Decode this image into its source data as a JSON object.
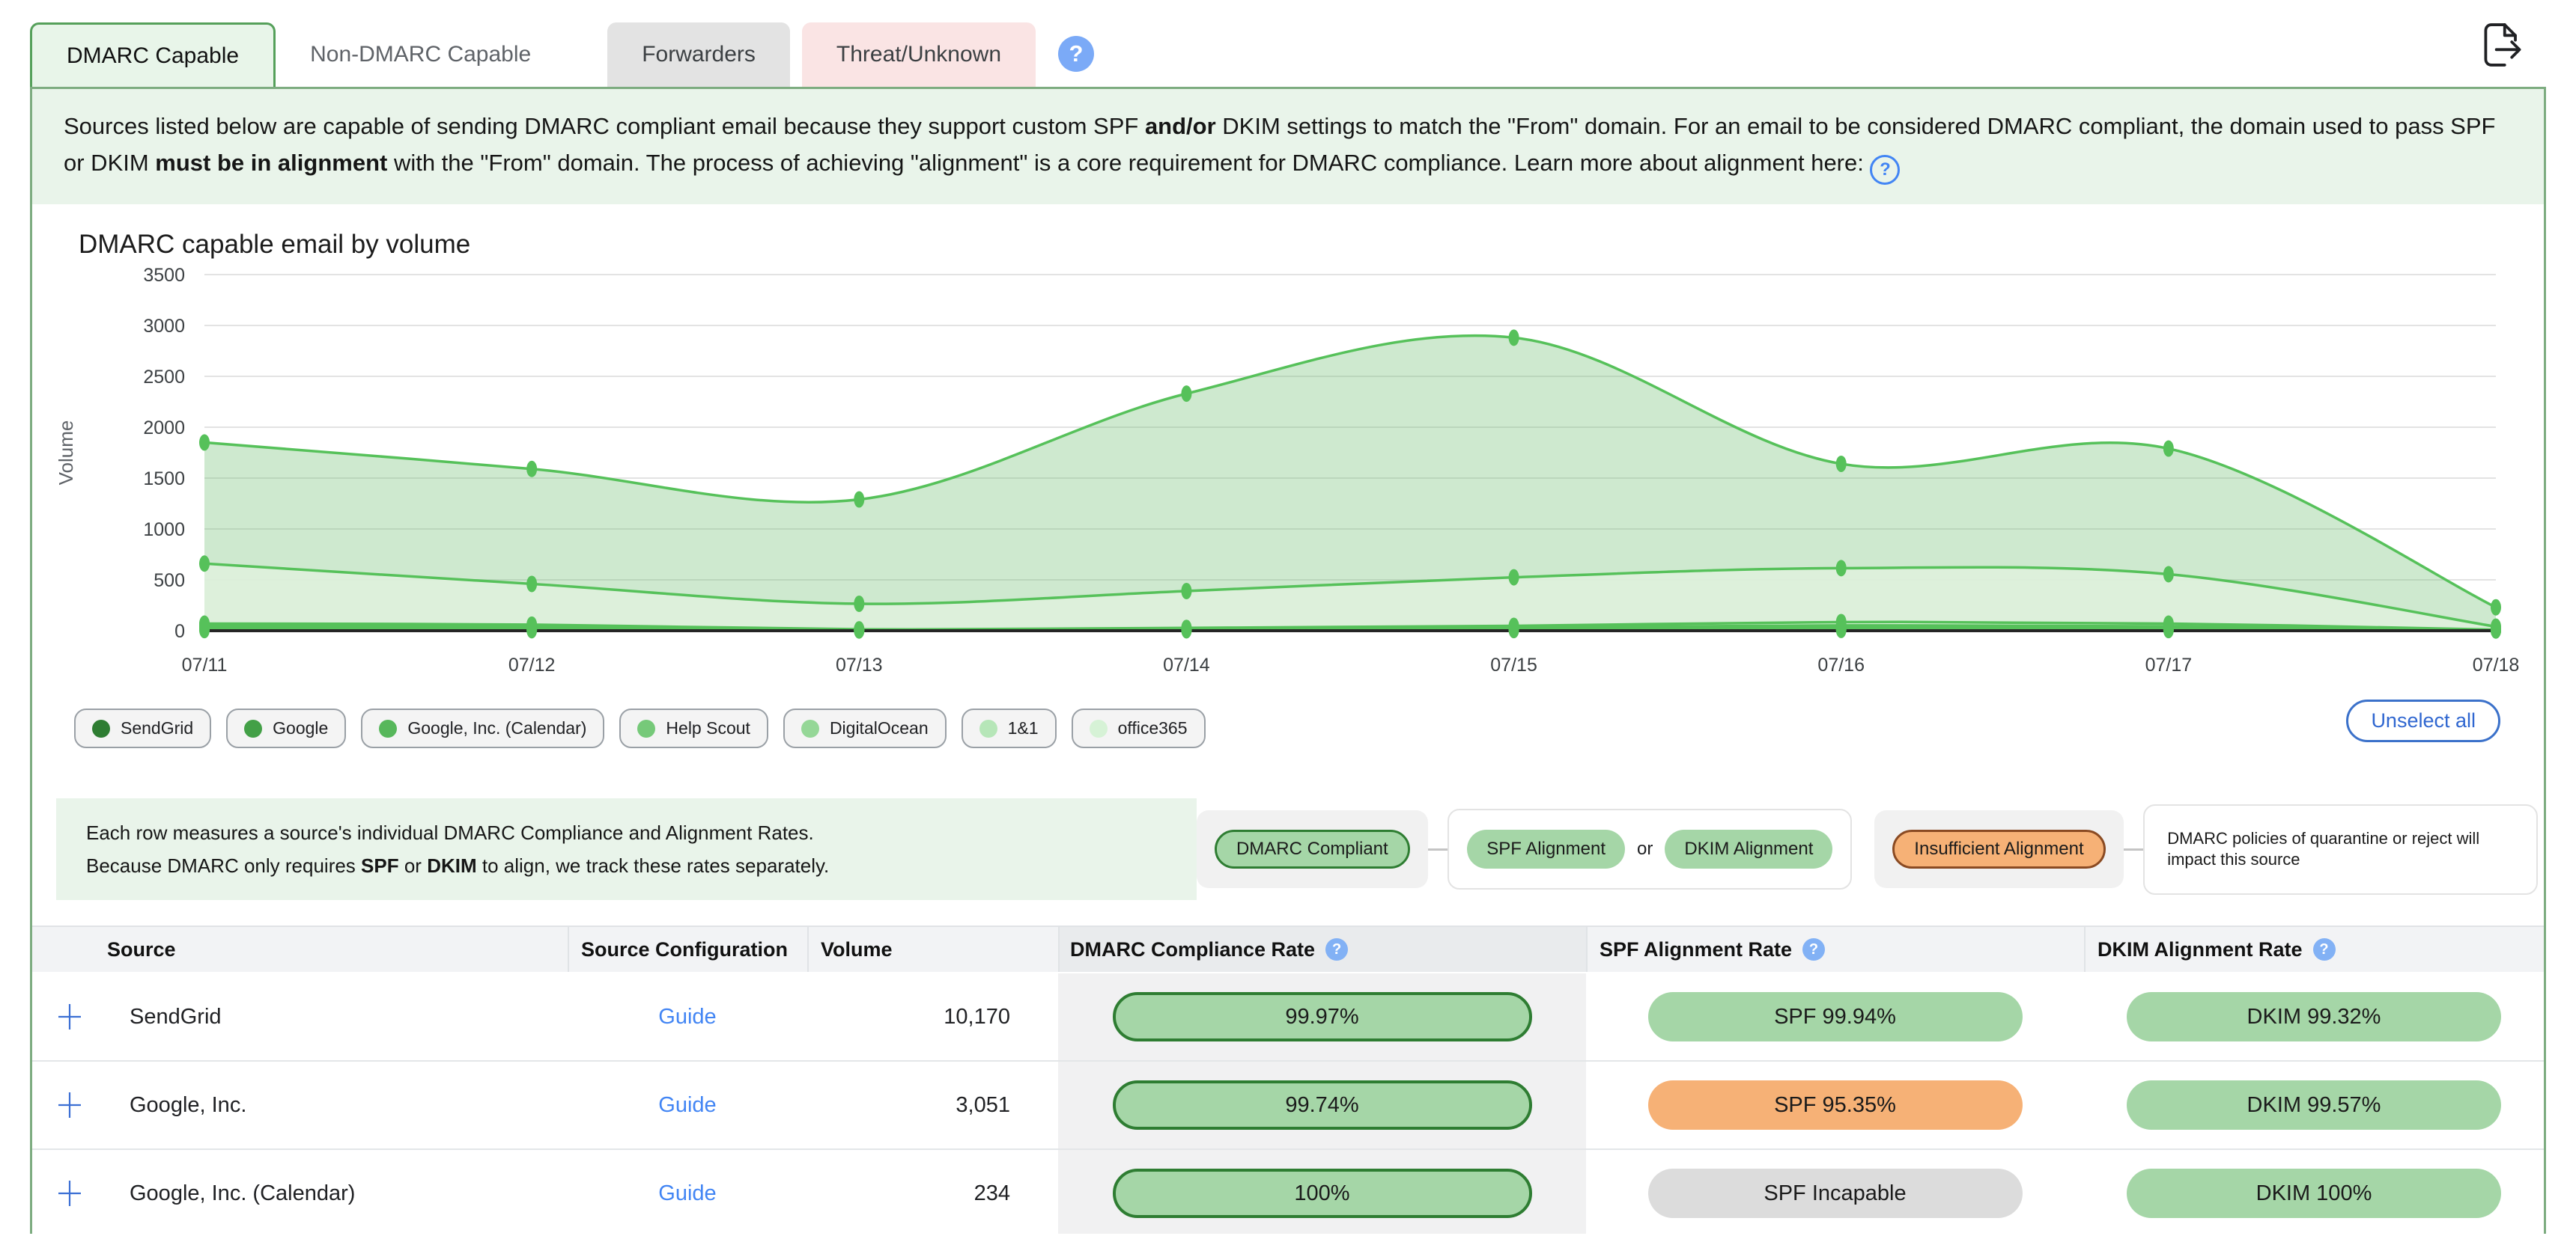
{
  "tabs": [
    {
      "label": "DMARC Capable",
      "state": "active"
    },
    {
      "label": "Non-DMARC Capable",
      "state": "plain"
    },
    {
      "label": "Forwarders",
      "state": "gray"
    },
    {
      "label": "Threat/Unknown",
      "state": "pink"
    }
  ],
  "icons": {
    "help_glyph": "?"
  },
  "banner": {
    "segments": [
      {
        "text": "Sources listed below are capable of sending DMARC compliant email because they support custom SPF ",
        "bold": false
      },
      {
        "text": "and/or",
        "bold": true
      },
      {
        "text": " DKIM settings to match the \"From\" domain. For an email to be considered DMARC compliant, the domain used to pass SPF or DKIM ",
        "bold": false
      },
      {
        "text": "must be in alignment",
        "bold": true
      },
      {
        "text": " with the \"From\" domain. The process of achieving \"alignment\" is a core requirement for DMARC compliance. Learn more about alignment here: ",
        "bold": false
      }
    ]
  },
  "chart": {
    "title": "DMARC capable email by volume",
    "unselect_label": "Unselect all"
  },
  "chart_data": {
    "type": "area",
    "x": [
      "07/11",
      "07/12",
      "07/13",
      "07/14",
      "07/15",
      "07/16",
      "07/17",
      "07/18"
    ],
    "series": [
      {
        "name": "SendGrid",
        "color": "#2e7d32",
        "values": [
          1850,
          1590,
          1290,
          2330,
          2880,
          1640,
          1790,
          230
        ]
      },
      {
        "name": "Google",
        "color": "#43a047",
        "values": [
          660,
          460,
          265,
          390,
          525,
          615,
          555,
          40
        ]
      },
      {
        "name": "Google, Inc. (Calendar)",
        "color": "#57b75b",
        "values": [
          70,
          60,
          14,
          28,
          48,
          85,
          70,
          10
        ]
      },
      {
        "name": "Help Scout",
        "color": "#76c979",
        "values": [
          48,
          40,
          10,
          20,
          34,
          52,
          44,
          8
        ]
      },
      {
        "name": "DigitalOcean",
        "color": "#95d797",
        "values": [
          30,
          25,
          6,
          13,
          21,
          31,
          27,
          5
        ]
      },
      {
        "name": "1&1",
        "color": "#b6e6b8",
        "values": [
          15,
          12,
          4,
          8,
          11,
          15,
          12,
          3
        ]
      },
      {
        "name": "office365",
        "color": "#d6f2d6",
        "values": [
          6,
          5,
          2,
          4,
          6,
          8,
          6,
          2
        ]
      }
    ],
    "title": "DMARC capable email by volume",
    "xlabel": "",
    "ylabel": "Volume",
    "ylim": [
      0,
      3500
    ],
    "ytick_step": 500,
    "grid": true,
    "legend_position": "bottom"
  },
  "note": {
    "line1": "Each row measures a source's individual DMARC Compliance and Alignment Rates.",
    "line2_segments": [
      {
        "text": "Because DMARC only requires ",
        "bold": false
      },
      {
        "text": "SPF",
        "bold": true
      },
      {
        "text": " or ",
        "bold": false
      },
      {
        "text": "DKIM",
        "bold": true
      },
      {
        "text": " to align, we track these rates separately.",
        "bold": false
      }
    ]
  },
  "legend": {
    "compliant": "DMARC Compliant",
    "spf": "SPF Alignment",
    "or": "or",
    "dkim": "DKIM Alignment",
    "insufficient": "Insufficient Alignment",
    "impact": "DMARC policies of quarantine or reject will impact this source"
  },
  "table": {
    "headers": {
      "source": "Source",
      "config": "Source Configuration",
      "volume": "Volume",
      "compliance": "DMARC Compliance Rate",
      "spf": "SPF Alignment Rate",
      "dkim": "DKIM Alignment Rate"
    },
    "rows": [
      {
        "source": "SendGrid",
        "config": "Guide",
        "volume": "10,170",
        "compliance": "99.97%",
        "spf_text": "SPF 99.94%",
        "spf_type": "green",
        "dkim_text": "DKIM 99.32%",
        "dkim_type": "green"
      },
      {
        "source": "Google, Inc.",
        "config": "Guide",
        "volume": "3,051",
        "compliance": "99.74%",
        "spf_text": "SPF 95.35%",
        "spf_type": "orange",
        "dkim_text": "DKIM 99.57%",
        "dkim_type": "green"
      },
      {
        "source": "Google, Inc. (Calendar)",
        "config": "Guide",
        "volume": "234",
        "compliance": "100%",
        "spf_text": "SPF Incapable",
        "spf_type": "gray",
        "dkim_text": "DKIM 100%",
        "dkim_type": "green"
      }
    ]
  },
  "colors": {
    "accent_green": "#4caf50",
    "panel_border": "#7dac80",
    "banner_bg": "#e9f4ea",
    "line_green": "#56c15a",
    "pill_green": "#a5d6a7",
    "pill_green_border": "#2e7d32",
    "pill_orange": "#f6b176",
    "pill_gray": "#dcdcdc",
    "link_blue": "#4285f4",
    "help_blue": "#7baaf7"
  }
}
